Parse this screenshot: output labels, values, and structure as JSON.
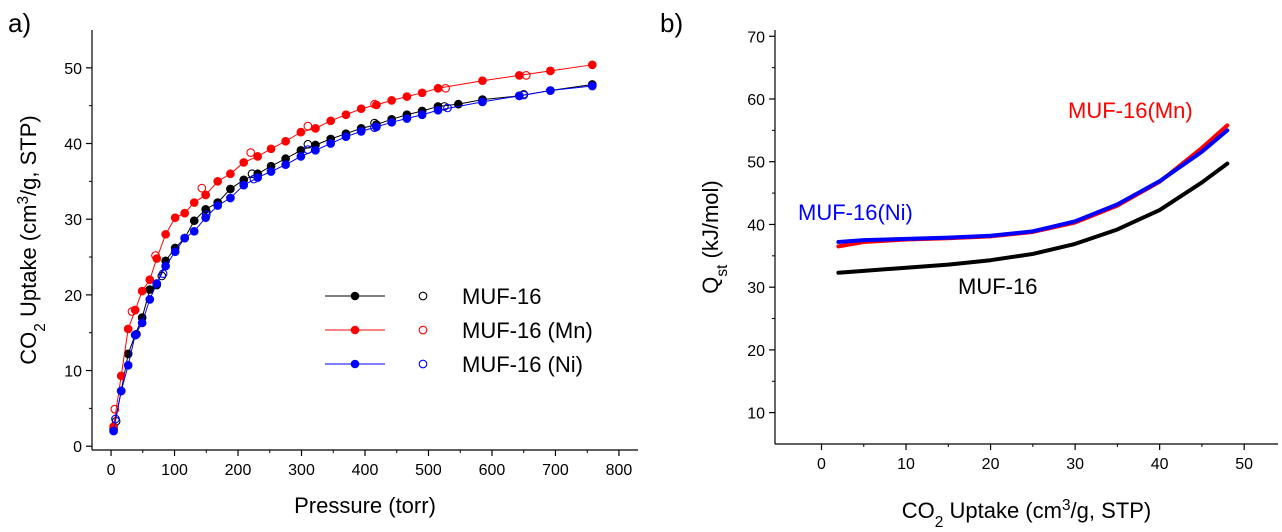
{
  "chart_data": [
    {
      "panel_label": "a)",
      "type": "scatter",
      "xlabel": "Pressure (torr)",
      "ylabel": {
        "pre": "CO",
        "sub": "2",
        "mid": " Uptake (cm",
        "sup": "3",
        "post": "/g, STP)"
      },
      "xlim": [
        -30,
        830
      ],
      "ylim": [
        -0.5,
        55
      ],
      "xticks": [
        0,
        100,
        200,
        300,
        400,
        500,
        600,
        700,
        800
      ],
      "yticks": [
        0,
        10,
        20,
        30,
        40,
        50
      ],
      "legend": {
        "placement": "center-right"
      },
      "series": [
        {
          "name": "MUF-16",
          "color": "#000000",
          "filled": true,
          "line": true,
          "x": [
            4,
            16,
            27,
            38,
            49,
            61,
            72,
            86,
            101,
            116,
            131,
            149,
            168,
            188,
            209,
            231,
            252,
            275,
            299,
            322,
            346,
            370,
            394,
            418,
            442,
            466,
            490,
            515,
            547,
            585,
            643,
            692,
            758
          ],
          "y": [
            2.3,
            7.3,
            12.2,
            14.7,
            17.0,
            20.7,
            21.3,
            24.5,
            26.2,
            27.5,
            29.8,
            31.3,
            32.2,
            34.0,
            35.2,
            36.0,
            37.0,
            38.0,
            39.1,
            39.8,
            40.6,
            41.3,
            42.0,
            42.5,
            43.2,
            43.8,
            44.3,
            44.9,
            45.2,
            45.8,
            46.3,
            47.0,
            47.8
          ]
        },
        {
          "name": "MUF-16",
          "color": "#000000",
          "filled": false,
          "line": false,
          "x": [
            8,
            40,
            80,
            150,
            222,
            310,
            415,
            525,
            650
          ],
          "y": [
            3.3,
            14.8,
            22.5,
            31.0,
            36.0,
            39.9,
            42.7,
            44.9,
            46.5
          ]
        },
        {
          "name": "MUF-16 (Mn)",
          "color": "#ff0000",
          "filled": true,
          "line": true,
          "x": [
            4,
            16,
            27,
            38,
            49,
            61,
            72,
            86,
            101,
            116,
            131,
            149,
            168,
            188,
            209,
            231,
            252,
            275,
            299,
            322,
            346,
            370,
            394,
            418,
            442,
            466,
            490,
            515,
            585,
            643,
            692,
            758
          ],
          "y": [
            2.6,
            9.3,
            15.5,
            18.0,
            20.5,
            22.0,
            24.8,
            28.0,
            30.2,
            30.8,
            32.2,
            33.2,
            35.0,
            36.0,
            37.5,
            38.3,
            39.3,
            40.3,
            41.5,
            42.0,
            43.0,
            43.8,
            44.6,
            45.1,
            45.7,
            46.2,
            46.7,
            47.3,
            48.3,
            49.0,
            49.6,
            50.4
          ]
        },
        {
          "name": "MUF-16 (Mn)",
          "color": "#ff0000",
          "filled": false,
          "line": false,
          "x": [
            6,
            33,
            70,
            143,
            220,
            310,
            415,
            527,
            654
          ],
          "y": [
            4.9,
            17.8,
            25.2,
            34.1,
            38.8,
            42.3,
            45.2,
            47.3,
            49.0
          ]
        },
        {
          "name": "MUF-16 (Ni)",
          "color": "#0000ff",
          "filled": true,
          "line": true,
          "x": [
            4,
            16,
            27,
            38,
            49,
            61,
            72,
            86,
            101,
            116,
            131,
            149,
            168,
            188,
            209,
            231,
            252,
            275,
            299,
            322,
            346,
            370,
            394,
            418,
            442,
            466,
            490,
            515,
            585,
            643,
            692,
            758
          ],
          "y": [
            2.0,
            7.3,
            10.7,
            14.7,
            16.3,
            19.4,
            21.5,
            23.8,
            25.7,
            27.5,
            28.4,
            30.2,
            31.8,
            32.8,
            34.5,
            35.5,
            36.3,
            37.2,
            38.3,
            39.1,
            40.0,
            40.9,
            41.6,
            42.2,
            42.8,
            43.3,
            43.8,
            44.4,
            45.5,
            46.3,
            47.0,
            47.6
          ]
        },
        {
          "name": "MUF-16 (Ni)",
          "color": "#0000ff",
          "filled": false,
          "line": false,
          "x": [
            7,
            39,
            82,
            150,
            225,
            310,
            415,
            530,
            650
          ],
          "y": [
            3.6,
            14.7,
            22.8,
            30.6,
            35.3,
            39.2,
            42.1,
            44.7,
            46.4
          ]
        }
      ]
    },
    {
      "panel_label": "b)",
      "type": "line",
      "xlabel": {
        "pre": "CO",
        "sub": "2",
        "mid": " Uptake (cm",
        "sup": "3",
        "post": "/g, STP)"
      },
      "ylabel": {
        "pre": "Q",
        "sub": "st",
        "post": " (kJ/mol)"
      },
      "xlim": [
        -5.5,
        54
      ],
      "ylim": [
        5,
        71
      ],
      "xticks": [
        0,
        10,
        20,
        30,
        40,
        50
      ],
      "yticks": [
        10,
        20,
        30,
        40,
        50,
        60,
        70
      ],
      "series": [
        {
          "name": "MUF-16(Mn)",
          "color": "#ff0000",
          "x": [
            2,
            5,
            10,
            15,
            20,
            25,
            30,
            35,
            40,
            45,
            48
          ],
          "y": [
            36.5,
            37.2,
            37.6,
            37.8,
            38.1,
            38.8,
            40.3,
            43.0,
            46.8,
            52.2,
            55.8
          ]
        },
        {
          "name": "MUF-16(Ni)",
          "color": "#0000ff",
          "x": [
            2,
            5,
            10,
            15,
            20,
            25,
            30,
            35,
            40,
            45,
            48
          ],
          "y": [
            37.2,
            37.5,
            37.7,
            37.9,
            38.2,
            38.9,
            40.5,
            43.2,
            46.9,
            51.6,
            55.0
          ]
        },
        {
          "name": "MUF-16",
          "color": "#000000",
          "x": [
            2,
            5,
            10,
            15,
            20,
            25,
            30,
            35,
            40,
            45,
            48
          ],
          "y": [
            32.3,
            32.6,
            33.1,
            33.6,
            34.3,
            35.3,
            36.9,
            39.2,
            42.3,
            46.7,
            49.7
          ]
        }
      ]
    }
  ]
}
